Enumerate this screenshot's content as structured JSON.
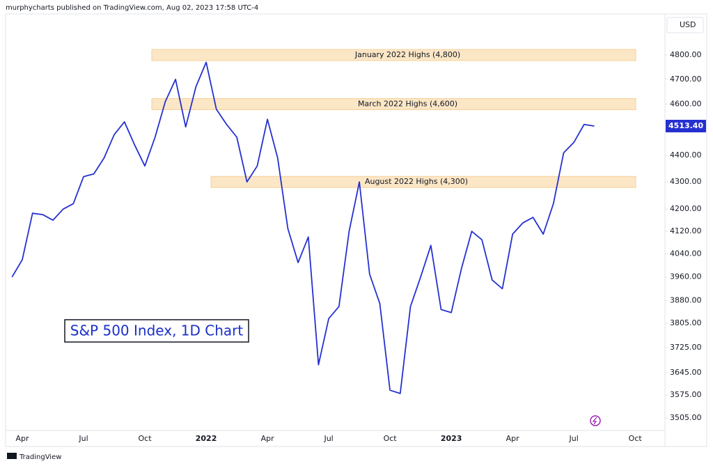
{
  "header": "murphycharts published on TradingView.com, Aug 02, 2023 17:58 UTC-4",
  "footer": "TradingView",
  "chart_data": {
    "type": "line",
    "currency": "USD",
    "annotation": "S&P 500 Index, 1D Chart",
    "log_scale": true,
    "color": "#2530d0",
    "categories": [
      null,
      "Apr",
      null,
      null,
      null,
      null,
      null,
      "Jul",
      null,
      null,
      null,
      null,
      null,
      "Oct",
      null,
      null,
      null,
      null,
      null,
      "2022",
      null,
      null,
      null,
      null,
      null,
      "Apr",
      null,
      null,
      null,
      null,
      null,
      "Jul",
      null,
      null,
      null,
      null,
      null,
      "Oct",
      null,
      null,
      null,
      null,
      null,
      "2023",
      null,
      null,
      null,
      null,
      null,
      "Apr",
      null,
      null,
      null,
      null,
      null,
      "Jul",
      null,
      null,
      null,
      null,
      null,
      "Oct",
      null
    ],
    "values": [
      3960,
      4020,
      4185,
      4180,
      4160,
      4200,
      4220,
      4320,
      4330,
      4390,
      4480,
      4530,
      4440,
      4360,
      4470,
      4610,
      4700,
      4510,
      4670,
      4770,
      4580,
      4520,
      4470,
      4300,
      4360,
      4540,
      4390,
      4130,
      4010,
      4100,
      3670,
      3820,
      3860,
      4120,
      4300,
      3970,
      3870,
      3590,
      3580,
      3860,
      3960,
      4070,
      3850,
      3840,
      3990,
      4120,
      4090,
      3950,
      3920,
      4110,
      4150,
      4170,
      4110,
      4220,
      4410,
      4450,
      4520,
      4513.4,
      null,
      null,
      null,
      null,
      null
    ],
    "price_label": {
      "value": 4513.4,
      "label": "4513.40"
    },
    "zones": [
      {
        "label": "January 2022 Highs (4,800)",
        "level": 4800
      },
      {
        "label": "March 2022 Highs (4,600)",
        "level": 4600
      },
      {
        "label": "August 2022 Highs (4,300)",
        "level": 4300
      }
    ],
    "ylim": [
      3467,
      4974
    ],
    "yticks": [
      {
        "value": 3505,
        "label": "3505.00"
      },
      {
        "value": 3575,
        "label": "3575.00"
      },
      {
        "value": 3645,
        "label": "3645.00"
      },
      {
        "value": 3725,
        "label": "3725.00"
      },
      {
        "value": 3805,
        "label": "3805.00"
      },
      {
        "value": 3880,
        "label": "3880.00"
      },
      {
        "value": 3960,
        "label": "3960.00"
      },
      {
        "value": 4040,
        "label": "4040.00"
      },
      {
        "value": 4120,
        "label": "4120.00"
      },
      {
        "value": 4200,
        "label": "4200.00"
      },
      {
        "value": 4300,
        "label": "4300.00"
      },
      {
        "value": 4400,
        "label": "4400.00"
      },
      {
        "value": 4600,
        "label": "4600.00"
      },
      {
        "value": 4700,
        "label": "4700.00"
      },
      {
        "value": 4800,
        "label": "4800.00"
      }
    ]
  }
}
